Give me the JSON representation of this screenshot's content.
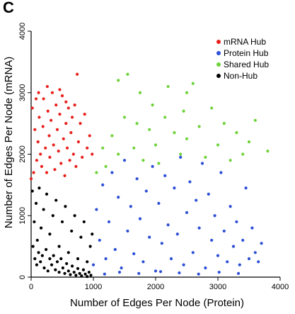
{
  "panel_label": "C",
  "chart_data": {
    "type": "scatter",
    "xlabel": "Number of Edges Per Node (Protein)",
    "ylabel": "Number of Edges Per Node (mRNA)",
    "xlim": [
      0,
      4000
    ],
    "ylim": [
      0,
      4000
    ],
    "x_ticks": [
      "0",
      "1000",
      "2000",
      "3000",
      "4000"
    ],
    "y_ticks": [
      "0",
      "1000",
      "2000",
      "3000",
      "4000"
    ],
    "grid": false,
    "legend_position": "top-right",
    "colors": {
      "mRNA Hub": "#e8211c",
      "Protein Hub": "#2c4fd6",
      "Shared Hub": "#6fd23a",
      "Non-Hub": "#000000"
    },
    "series": [
      {
        "name": "mRNA Hub",
        "points": [
          [
            0,
            1600
          ],
          [
            20,
            2750
          ],
          [
            40,
            1700
          ],
          [
            60,
            2400
          ],
          [
            80,
            2900
          ],
          [
            90,
            1900
          ],
          [
            110,
            2200
          ],
          [
            130,
            2600
          ],
          [
            150,
            2000
          ],
          [
            170,
            1800
          ],
          [
            190,
            2450
          ],
          [
            200,
            2900
          ],
          [
            230,
            2100
          ],
          [
            250,
            1700
          ],
          [
            270,
            2700
          ],
          [
            290,
            2300
          ],
          [
            300,
            1950
          ],
          [
            320,
            2550
          ],
          [
            340,
            3000
          ],
          [
            360,
            2150
          ],
          [
            380,
            1750
          ],
          [
            400,
            2800
          ],
          [
            420,
            2400
          ],
          [
            440,
            2050
          ],
          [
            460,
            2650
          ],
          [
            480,
            1850
          ],
          [
            500,
            2950
          ],
          [
            520,
            2250
          ],
          [
            540,
            1650
          ],
          [
            560,
            2500
          ],
          [
            580,
            2100
          ],
          [
            600,
            2750
          ],
          [
            620,
            1900
          ],
          [
            640,
            2350
          ],
          [
            660,
            2600
          ],
          [
            680,
            2000
          ],
          [
            700,
            2800
          ],
          [
            720,
            1800
          ],
          [
            740,
            3300
          ],
          [
            760,
            2200
          ],
          [
            790,
            2500
          ],
          [
            820,
            1950
          ],
          [
            860,
            2650
          ],
          [
            900,
            2100
          ],
          [
            940,
            2300
          ],
          [
            980,
            2000
          ],
          [
            120,
            3000
          ],
          [
            260,
            3100
          ],
          [
            460,
            3050
          ],
          [
            560,
            2850
          ]
        ]
      },
      {
        "name": "Protein Hub",
        "points": [
          [
            1000,
            200
          ],
          [
            1050,
            1100
          ],
          [
            1100,
            600
          ],
          [
            1150,
            1500
          ],
          [
            1200,
            300
          ],
          [
            1250,
            900
          ],
          [
            1300,
            1700
          ],
          [
            1350,
            450
          ],
          [
            1400,
            1300
          ],
          [
            1450,
            150
          ],
          [
            1500,
            1900
          ],
          [
            1550,
            750
          ],
          [
            1600,
            1150
          ],
          [
            1650,
            380
          ],
          [
            1700,
            1600
          ],
          [
            1750,
            950
          ],
          [
            1800,
            250
          ],
          [
            1850,
            1400
          ],
          [
            1900,
            650
          ],
          [
            1950,
            1800
          ],
          [
            2000,
            100
          ],
          [
            2050,
            1200
          ],
          [
            2100,
            550
          ],
          [
            2150,
            1650
          ],
          [
            2200,
            850
          ],
          [
            2250,
            300
          ],
          [
            2300,
            1450
          ],
          [
            2350,
            700
          ],
          [
            2400,
            1950
          ],
          [
            2450,
            200
          ],
          [
            2500,
            1050
          ],
          [
            2550,
            1550
          ],
          [
            2600,
            400
          ],
          [
            2650,
            1250
          ],
          [
            2700,
            800
          ],
          [
            2750,
            1850
          ],
          [
            2800,
            150
          ],
          [
            2850,
            1350
          ],
          [
            2900,
            600
          ],
          [
            2950,
            1000
          ],
          [
            3000,
            350
          ],
          [
            3050,
            1700
          ],
          [
            3100,
            750
          ],
          [
            3150,
            250
          ],
          [
            3200,
            1150
          ],
          [
            3250,
            500
          ],
          [
            3300,
            900
          ],
          [
            3350,
            200
          ],
          [
            3400,
            600
          ],
          [
            3450,
            1450
          ],
          [
            3500,
            300
          ],
          [
            3550,
            800
          ],
          [
            3600,
            400
          ],
          [
            3650,
            250
          ],
          [
            3700,
            550
          ],
          [
            1180,
            50
          ],
          [
            1420,
            80
          ],
          [
            1730,
            60
          ],
          [
            2080,
            90
          ],
          [
            2380,
            70
          ],
          [
            2690,
            50
          ],
          [
            3020,
            80
          ],
          [
            3330,
            60
          ]
        ]
      },
      {
        "name": "Shared Hub",
        "points": [
          [
            1050,
            1700
          ],
          [
            1150,
            2100
          ],
          [
            1200,
            1800
          ],
          [
            1300,
            2300
          ],
          [
            1400,
            2000
          ],
          [
            1500,
            2600
          ],
          [
            1550,
            3300
          ],
          [
            1650,
            2100
          ],
          [
            1700,
            2500
          ],
          [
            1750,
            3000
          ],
          [
            1800,
            1900
          ],
          [
            1900,
            2400
          ],
          [
            1950,
            2800
          ],
          [
            2000,
            2150
          ],
          [
            2050,
            1850
          ],
          [
            2150,
            2600
          ],
          [
            2200,
            3100
          ],
          [
            2300,
            2350
          ],
          [
            2400,
            2000
          ],
          [
            2450,
            2700
          ],
          [
            2500,
            2250
          ],
          [
            2600,
            3150
          ],
          [
            2700,
            2450
          ],
          [
            2800,
            1950
          ],
          [
            2900,
            2750
          ],
          [
            3000,
            2150
          ],
          [
            3100,
            2500
          ],
          [
            3200,
            1900
          ],
          [
            3300,
            2350
          ],
          [
            3400,
            2000
          ],
          [
            3500,
            2200
          ],
          [
            3600,
            2550
          ],
          [
            3800,
            2050
          ],
          [
            1400,
            3200
          ],
          [
            2500,
            3000
          ]
        ]
      },
      {
        "name": "Non-Hub",
        "points": [
          [
            20,
            1400
          ],
          [
            50,
            900
          ],
          [
            80,
            1200
          ],
          [
            100,
            600
          ],
          [
            130,
            1450
          ],
          [
            160,
            800
          ],
          [
            200,
            1100
          ],
          [
            250,
            1350
          ],
          [
            300,
            700
          ],
          [
            350,
            1000
          ],
          [
            400,
            1250
          ],
          [
            450,
            500
          ],
          [
            500,
            900
          ],
          [
            550,
            1150
          ],
          [
            600,
            400
          ],
          [
            650,
            750
          ],
          [
            700,
            1000
          ],
          [
            750,
            300
          ],
          [
            800,
            650
          ],
          [
            850,
            900
          ],
          [
            900,
            250
          ],
          [
            950,
            500
          ],
          [
            980,
            700
          ],
          [
            30,
            500
          ],
          [
            60,
            300
          ],
          [
            90,
            200
          ],
          [
            120,
            400
          ],
          [
            150,
            250
          ],
          [
            180,
            350
          ],
          [
            210,
            150
          ],
          [
            240,
            450
          ],
          [
            270,
            100
          ],
          [
            300,
            300
          ],
          [
            330,
            200
          ],
          [
            360,
            350
          ],
          [
            390,
            120
          ],
          [
            420,
            250
          ],
          [
            450,
            80
          ],
          [
            480,
            300
          ],
          [
            510,
            150
          ],
          [
            540,
            60
          ],
          [
            570,
            220
          ],
          [
            600,
            100
          ],
          [
            630,
            40
          ],
          [
            660,
            180
          ],
          [
            690,
            80
          ],
          [
            720,
            30
          ],
          [
            750,
            140
          ],
          [
            780,
            60
          ],
          [
            810,
            20
          ],
          [
            840,
            120
          ],
          [
            870,
            50
          ],
          [
            900,
            10
          ],
          [
            930,
            80
          ],
          [
            960,
            30
          ]
        ]
      }
    ]
  }
}
